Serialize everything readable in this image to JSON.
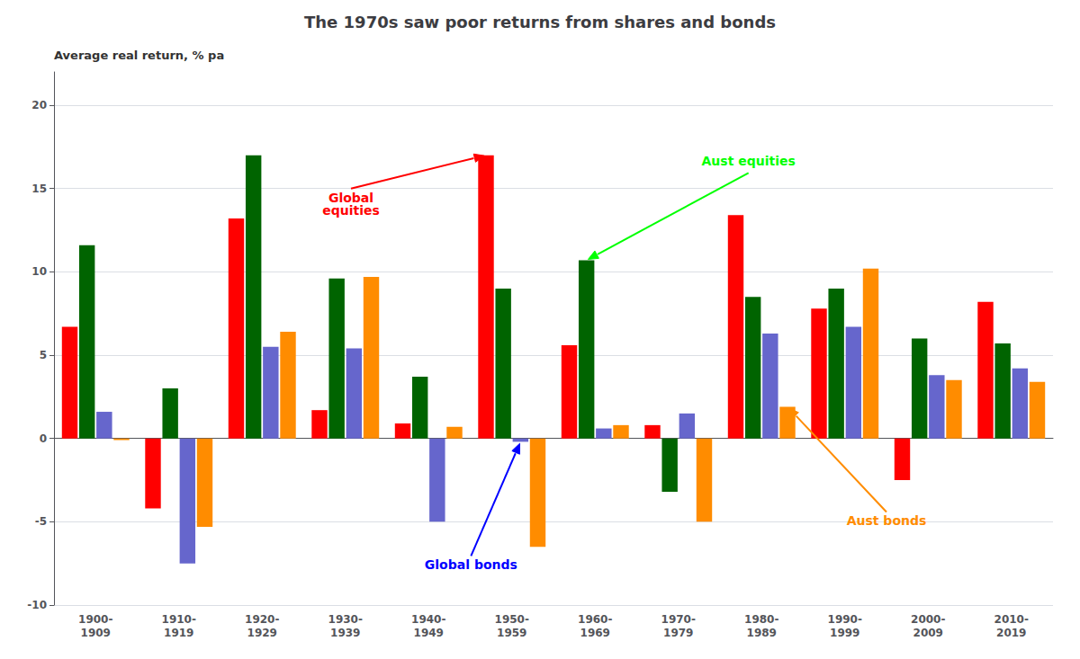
{
  "chart_data": {
    "type": "bar",
    "title": "The 1970s saw poor returns from shares and bonds",
    "ylabel": "Average real return, % pa",
    "categories": [
      "1900-\n1909",
      "1910-\n1919",
      "1920-\n1929",
      "1930-\n1939",
      "1940-\n1949",
      "1950-\n1959",
      "1960-\n1969",
      "1970-\n1979",
      "1980-\n1989",
      "1990-\n1999",
      "2000-\n2009",
      "2010-\n2019"
    ],
    "series": [
      {
        "color": "#ff0000",
        "values": [
          6.7,
          -4.2,
          13.2,
          1.7,
          0.9,
          17.0,
          5.6,
          0.8,
          13.4,
          7.8,
          -2.5,
          8.2
        ]
      },
      {
        "color": "#006400",
        "values": [
          11.6,
          3.0,
          17.0,
          9.6,
          3.7,
          9.0,
          10.7,
          -3.2,
          8.5,
          9.0,
          6.0,
          5.7
        ]
      },
      {
        "color": "#6666cc",
        "values": [
          1.6,
          -7.5,
          5.5,
          5.4,
          -5.0,
          -0.2,
          0.6,
          1.5,
          6.3,
          6.7,
          3.8,
          4.2
        ]
      },
      {
        "color": "#ff8c00",
        "values": [
          -0.1,
          -5.3,
          6.4,
          9.7,
          0.7,
          -6.5,
          0.8,
          -5.0,
          1.9,
          10.2,
          3.5,
          3.4
        ]
      }
    ],
    "ylim": [
      -10,
      22
    ],
    "yticks": [
      -10,
      -5,
      0,
      5,
      10,
      15,
      20
    ],
    "grid": true,
    "annotations": [
      {
        "text": "Global\nequities",
        "color": "red",
        "x": "1950-\n1959",
        "y": 17.0
      },
      {
        "text": "Aust equities",
        "color": "lime",
        "x": "1960-\n1969",
        "y": 10.7
      },
      {
        "text": "Global bonds",
        "color": "blue",
        "x": "1950-\n1959",
        "y": -0.2
      },
      {
        "text": "Aust bonds",
        "color": "darkorange",
        "x": "1980-\n1989",
        "y": 1.9
      }
    ]
  }
}
